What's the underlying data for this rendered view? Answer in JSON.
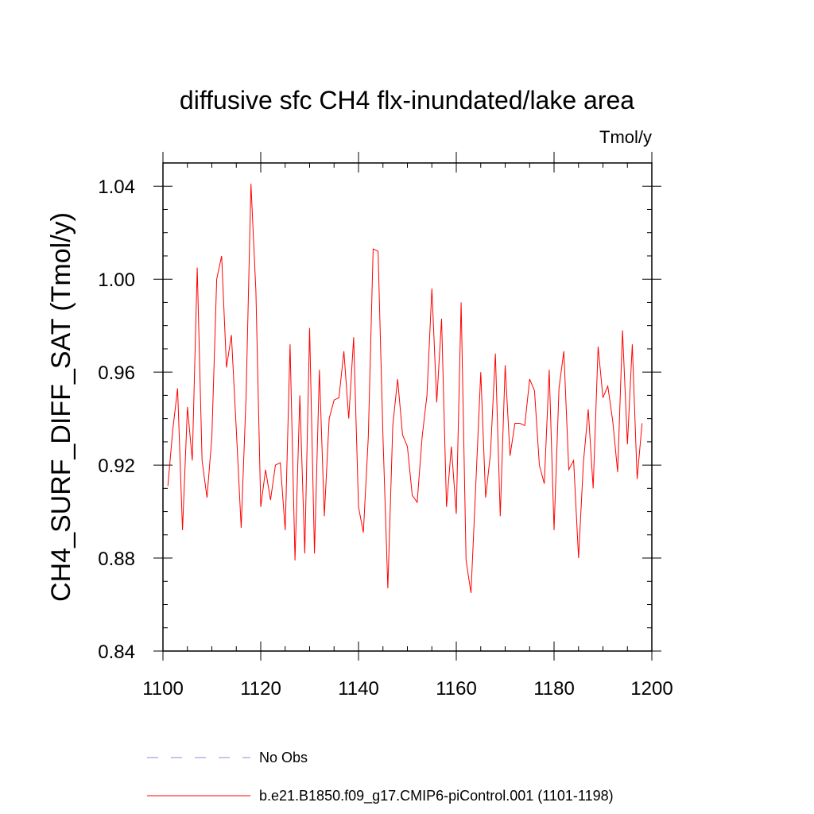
{
  "chart_data": {
    "type": "line",
    "title": "diffusive sfc CH4 flx-inundated/lake area",
    "units": "Tmol/y",
    "xlabel": "",
    "ylabel": "CH4_SURF_DIFF_SAT  (Tmol/y)",
    "xlim": [
      1100,
      1200
    ],
    "ylim": [
      0.84,
      1.05
    ],
    "x_ticks": [
      1100,
      1120,
      1140,
      1160,
      1180,
      1200
    ],
    "x_tick_labels": [
      "1100",
      "1120",
      "1140",
      "1160",
      "1180",
      "1200"
    ],
    "y_ticks": [
      0.84,
      0.88,
      0.92,
      0.96,
      1.0,
      1.04
    ],
    "y_tick_labels": [
      "0.84",
      "0.88",
      "0.92",
      "0.96",
      "1.00",
      "1.04"
    ],
    "grid": false,
    "legend_position": "bottom",
    "legend": [
      {
        "label": "No Obs",
        "style": "dashed",
        "color": "#8c8cd9"
      },
      {
        "label": "b.e21.B1850.f09_g17.CMIP6-piControl.001 (1101-1198)",
        "style": "solid",
        "color": "#ff0000"
      }
    ],
    "series": [
      {
        "name": "b.e21.B1850.f09_g17.CMIP6-piControl.001 (1101-1198)",
        "color": "#ff0000",
        "x": [
          1101,
          1102,
          1103,
          1104,
          1105,
          1106,
          1107,
          1108,
          1109,
          1110,
          1111,
          1112,
          1113,
          1114,
          1115,
          1116,
          1117,
          1118,
          1119,
          1120,
          1121,
          1122,
          1123,
          1124,
          1125,
          1126,
          1127,
          1128,
          1129,
          1130,
          1131,
          1132,
          1133,
          1134,
          1135,
          1136,
          1137,
          1138,
          1139,
          1140,
          1141,
          1142,
          1143,
          1144,
          1145,
          1146,
          1147,
          1148,
          1149,
          1150,
          1151,
          1152,
          1153,
          1154,
          1155,
          1156,
          1157,
          1158,
          1159,
          1160,
          1161,
          1162,
          1163,
          1164,
          1165,
          1166,
          1167,
          1168,
          1169,
          1170,
          1171,
          1172,
          1173,
          1174,
          1175,
          1176,
          1177,
          1178,
          1179,
          1180,
          1181,
          1182,
          1183,
          1184,
          1185,
          1186,
          1187,
          1188,
          1189,
          1190,
          1191,
          1192,
          1193,
          1194,
          1195,
          1196,
          1197,
          1198
        ],
        "values": [
          0.911,
          0.935,
          0.953,
          0.892,
          0.945,
          0.922,
          1.005,
          0.922,
          0.906,
          0.932,
          1.0,
          1.01,
          0.962,
          0.976,
          0.935,
          0.893,
          0.95,
          1.041,
          0.995,
          0.902,
          0.918,
          0.905,
          0.92,
          0.921,
          0.892,
          0.972,
          0.879,
          0.95,
          0.882,
          0.979,
          0.882,
          0.961,
          0.898,
          0.94,
          0.948,
          0.949,
          0.969,
          0.94,
          0.975,
          0.902,
          0.891,
          0.932,
          1.013,
          1.012,
          0.932,
          0.867,
          0.937,
          0.957,
          0.933,
          0.928,
          0.907,
          0.904,
          0.932,
          0.95,
          0.996,
          0.947,
          0.983,
          0.902,
          0.928,
          0.899,
          0.99,
          0.879,
          0.865,
          0.912,
          0.96,
          0.906,
          0.925,
          0.968,
          0.898,
          0.963,
          0.924,
          0.938,
          0.938,
          0.937,
          0.957,
          0.952,
          0.92,
          0.912,
          0.961,
          0.892,
          0.953,
          0.969,
          0.918,
          0.922,
          0.88,
          0.921,
          0.944,
          0.91,
          0.971,
          0.949,
          0.954,
          0.939,
          0.917,
          0.978,
          0.929,
          0.972,
          0.914,
          0.938
        ]
      }
    ]
  }
}
